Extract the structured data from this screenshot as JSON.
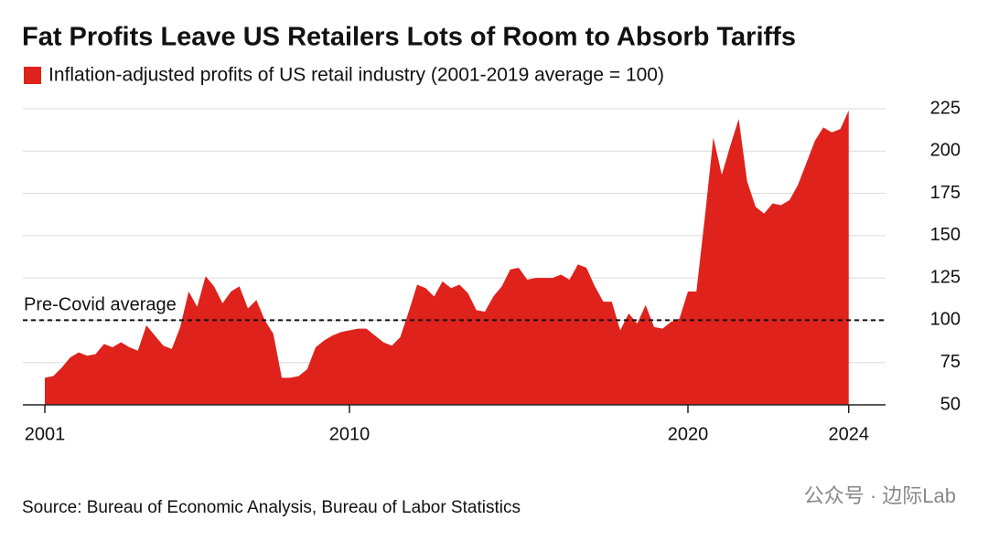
{
  "chart_data": {
    "type": "area",
    "title": "Fat Profits Leave US Retailers Lots of Room to Absorb Tariffs",
    "source": "Source: Bureau of Economic Analysis, Bureau of Labor Statistics",
    "watermark": "公众号 · 边际Lab",
    "x": [
      2001,
      2001.25,
      2001.5,
      2001.75,
      2002,
      2002.25,
      2002.5,
      2002.75,
      2003,
      2003.25,
      2003.5,
      2003.75,
      2004,
      2004.25,
      2004.5,
      2004.75,
      2005,
      2005.25,
      2005.5,
      2005.75,
      2006,
      2006.25,
      2006.5,
      2006.75,
      2007,
      2007.25,
      2007.5,
      2007.75,
      2008,
      2008.25,
      2008.5,
      2008.75,
      2009,
      2009.25,
      2009.5,
      2009.75,
      2010,
      2010.25,
      2010.5,
      2010.75,
      2011,
      2011.25,
      2011.5,
      2011.75,
      2012,
      2012.25,
      2012.5,
      2012.75,
      2013,
      2013.25,
      2013.5,
      2013.75,
      2014,
      2014.25,
      2014.5,
      2014.75,
      2015,
      2015.25,
      2015.5,
      2015.75,
      2016,
      2016.25,
      2016.5,
      2016.75,
      2017,
      2017.25,
      2017.5,
      2017.75,
      2018,
      2018.25,
      2018.5,
      2018.75,
      2019,
      2019.25,
      2019.5,
      2019.75,
      2020,
      2020.25,
      2020.5,
      2020.75,
      2021,
      2021.25,
      2021.5,
      2021.75,
      2022,
      2022.25,
      2022.5,
      2022.75,
      2023,
      2023.25,
      2023.5,
      2023.75,
      2024,
      2024.25,
      2024.5,
      2024.75
    ],
    "series": [
      {
        "name": "Inflation-adjusted profits of US retail industry (2001-2019 average = 100)",
        "color": "#df221c",
        "values": [
          66,
          67,
          72,
          78,
          81,
          79,
          80,
          86,
          84,
          87,
          84,
          82,
          97,
          91,
          85,
          83,
          96,
          117,
          108,
          126,
          120,
          110,
          117,
          120,
          107,
          112,
          100,
          92,
          66,
          66,
          67,
          71,
          84,
          88,
          91,
          93,
          94,
          95,
          95,
          91,
          87,
          85,
          90,
          105,
          121,
          119,
          114,
          123,
          119,
          121,
          116,
          106,
          105,
          114,
          120,
          130,
          131,
          124,
          125,
          125,
          125,
          127,
          124,
          133,
          131,
          120,
          111,
          111,
          94,
          104,
          98,
          109,
          96,
          95,
          99,
          101,
          117,
          117,
          161,
          208,
          186,
          203,
          219,
          182,
          167,
          163,
          169,
          168,
          171,
          180,
          193,
          206,
          214,
          211,
          213,
          224
        ]
      }
    ],
    "xlim": [
      2000,
      2025
    ],
    "xticks": [
      2001,
      2010,
      2020,
      {
        "value": 2024.75,
        "label": "2024"
      }
    ],
    "ylim": [
      50,
      225
    ],
    "yticks": [
      50,
      75,
      100,
      125,
      150,
      175,
      200,
      225
    ],
    "grid": true,
    "reference": {
      "value": 100,
      "label": "Pre-Covid average"
    }
  }
}
